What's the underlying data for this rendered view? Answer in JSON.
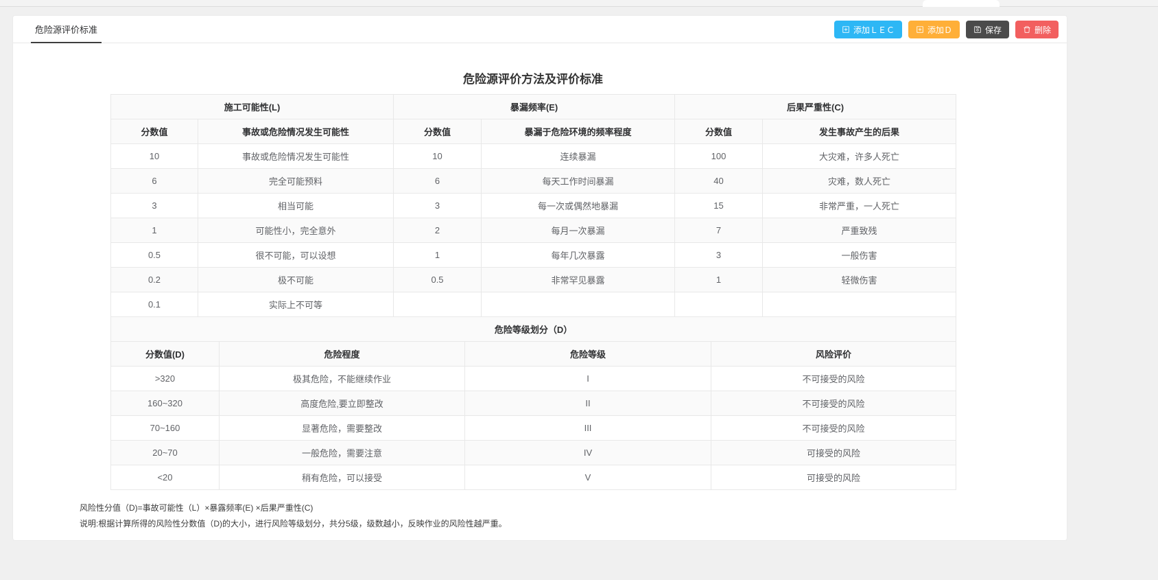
{
  "header": {
    "tab": "危险源评价标准",
    "buttons": {
      "add_lec": "添加ＬＥＣ",
      "add_d": "添加Ｄ",
      "save": "保存",
      "delete": "删除"
    }
  },
  "main": {
    "title": "危险源评价方法及评价标准"
  },
  "lec_table": {
    "groups": [
      "施工可能性(L)",
      "暴漏频率(E)",
      "后果严重性(C)"
    ],
    "subheaders": [
      "分数值",
      "事故或危险情况发生可能性",
      "分数值",
      "暴漏于危险环境的频率程度",
      "分数值",
      "发生事故产生的后果"
    ],
    "rows": [
      [
        "10",
        "事故或危险情况发生可能性",
        "10",
        "连续暴漏",
        "100",
        "大灾难，许多人死亡"
      ],
      [
        "6",
        "完全可能预料",
        "6",
        "每天工作时间暴漏",
        "40",
        "灾难，数人死亡"
      ],
      [
        "3",
        "相当可能",
        "3",
        "每一次或偶然地暴漏",
        "15",
        "非常严重，一人死亡"
      ],
      [
        "1",
        "可能性小，完全意外",
        "2",
        "每月一次暴漏",
        "7",
        "严重致残"
      ],
      [
        "0.5",
        "很不可能，可以设想",
        "1",
        "每年几次暴露",
        "3",
        "一般伤害"
      ],
      [
        "0.2",
        "极不可能",
        "0.5",
        "非常罕见暴露",
        "1",
        "轻微伤害"
      ],
      [
        "0.1",
        "实际上不可等",
        "",
        "",
        "",
        ""
      ]
    ]
  },
  "d_table": {
    "section_title": "危险等级划分（D）",
    "headers": [
      "分数值(D)",
      "危险程度",
      "危险等级",
      "风险评价"
    ],
    "rows": [
      [
        ">320",
        "极其危险，不能继续作业",
        "I",
        "不可接受的风险"
      ],
      [
        "160~320",
        "高度危险,要立即整改",
        "II",
        "不可接受的风险"
      ],
      [
        "70~160",
        "显著危险，需要整改",
        "III",
        "不可接受的风险"
      ],
      [
        "20~70",
        "一般危险，需要注意",
        "IV",
        "可接受的风险"
      ],
      [
        "<20",
        "稍有危险，可以接受",
        "V",
        "可接受的风险"
      ]
    ]
  },
  "notes": {
    "formula": "风险性分值（D)=事故可能性（L）×暴露频率(E) ×后果严重性(C)",
    "description": "说明:根据计算所得的风险性分数值（D)的大小，进行风险等级划分，共分5级，级数越小，反映作业的风险性越严重。"
  },
  "colors": {
    "accent_blue": "#2db7f5",
    "accent_orange": "#ffaf38",
    "accent_dark": "#4b4b4b",
    "accent_red": "#f25f5f",
    "table_border": "#e8e8e8",
    "header_bg": "#fafafa"
  }
}
